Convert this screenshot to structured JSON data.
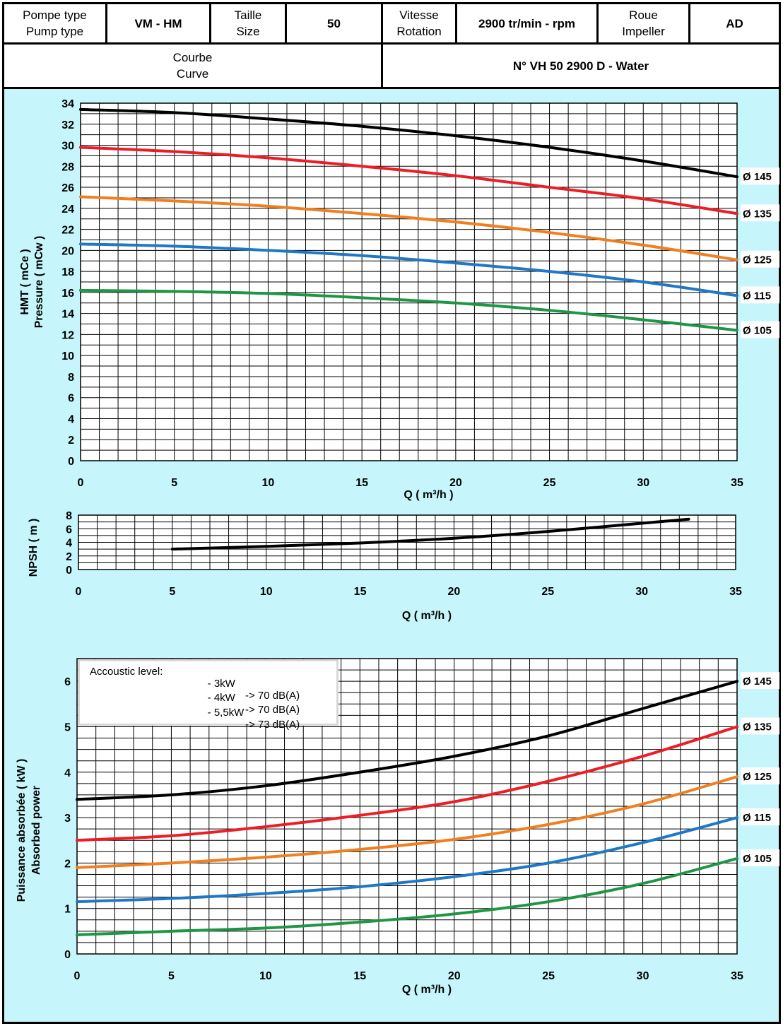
{
  "header": {
    "pump_type_label_fr": "Pompe type",
    "pump_type_label_en": "Pump type",
    "pump_type": "VM - HM",
    "size_label_fr": "Taille",
    "size_label_en": "Size",
    "size": "50",
    "speed_label_fr": "Vitesse",
    "speed_label_en": "Rotation",
    "speed": "2900 tr/min - rpm",
    "impeller_label_fr": "Roue",
    "impeller_label_en": "Impeller",
    "impeller": "AD",
    "curve_label_fr": "Courbe",
    "curve_label_en": "Curve",
    "curve_id": "N° VH 50 2900 D - Water"
  },
  "acoustic": {
    "title": "Accoustic level:",
    "rows": [
      {
        "power": "- 3kW",
        "level": "-> 70 dB(A)"
      },
      {
        "power": "- 4kW",
        "level": "-> 70 dB(A)"
      },
      {
        "power": "- 5,5kW",
        "level": "-> 73 dB(A)"
      }
    ]
  },
  "colors": {
    "background": "#c6f6fb",
    "d145": "#000000",
    "d135": "#ee1c24",
    "d125": "#f07f1f",
    "d115": "#1f78c6",
    "d105": "#1e9644"
  },
  "chart_data": [
    {
      "type": "line",
      "id": "hmt",
      "xlabel": "Q ( m³/h )",
      "ylabel_fr": "HMT ( mCe )",
      "ylabel_en": "Pressure ( mCw )",
      "xlim": [
        0,
        35
      ],
      "ylim": [
        0,
        34
      ],
      "xticks": [
        0,
        5,
        10,
        15,
        20,
        25,
        30,
        35
      ],
      "yticks": [
        0,
        2,
        4,
        6,
        8,
        10,
        12,
        14,
        16,
        18,
        20,
        22,
        24,
        26,
        28,
        30,
        32,
        34
      ],
      "grid": true,
      "x": [
        0,
        5,
        10,
        15,
        20,
        25,
        30,
        35
      ],
      "series": [
        {
          "name": "Ø 145",
          "color_key": "d145",
          "values": [
            33.4,
            33.1,
            32.5,
            31.8,
            30.9,
            29.8,
            28.5,
            27.0
          ]
        },
        {
          "name": "Ø 135",
          "color_key": "d135",
          "values": [
            29.8,
            29.4,
            28.8,
            28.0,
            27.1,
            26.0,
            24.9,
            23.5
          ]
        },
        {
          "name": "Ø 125",
          "color_key": "d125",
          "values": [
            25.1,
            24.7,
            24.2,
            23.5,
            22.7,
            21.7,
            20.5,
            19.1
          ]
        },
        {
          "name": "Ø 115",
          "color_key": "d115",
          "values": [
            20.6,
            20.4,
            20.0,
            19.5,
            18.8,
            18.0,
            17.0,
            15.7
          ]
        },
        {
          "name": "Ø 105",
          "color_key": "d105",
          "values": [
            16.2,
            16.1,
            15.9,
            15.5,
            15.0,
            14.3,
            13.4,
            12.4
          ]
        }
      ]
    },
    {
      "type": "line",
      "id": "npsh",
      "xlabel": "Q ( m³/h )",
      "ylabel": "NPSH ( m )",
      "xlim": [
        0,
        35
      ],
      "ylim": [
        0,
        8
      ],
      "xticks": [
        0,
        5,
        10,
        15,
        20,
        25,
        30,
        35
      ],
      "yticks": [
        0,
        2,
        4,
        6,
        8
      ],
      "grid": true,
      "series": [
        {
          "color_key": "d145",
          "x": [
            5,
            10,
            15,
            20,
            25,
            30,
            32.5
          ],
          "values": [
            3.0,
            3.4,
            3.9,
            4.6,
            5.6,
            6.8,
            7.4
          ]
        }
      ]
    },
    {
      "type": "line",
      "id": "power",
      "xlabel": "Q ( m³/h )",
      "ylabel_fr": "Puissance absorbée ( kW )",
      "ylabel_en": "Absorbed power",
      "xlim": [
        0,
        35
      ],
      "ylim": [
        0,
        6.5
      ],
      "xticks": [
        0,
        5,
        10,
        15,
        20,
        25,
        30,
        35
      ],
      "yticks": [
        0,
        1,
        2,
        3,
        4,
        5,
        6
      ],
      "grid": true,
      "x": [
        0,
        5,
        10,
        15,
        20,
        25,
        30,
        35
      ],
      "series": [
        {
          "name": "Ø 145",
          "color_key": "d145",
          "values": [
            3.4,
            3.5,
            3.7,
            4.0,
            4.35,
            4.8,
            5.4,
            6.0
          ]
        },
        {
          "name": "Ø 135",
          "color_key": "d135",
          "values": [
            2.5,
            2.6,
            2.8,
            3.05,
            3.35,
            3.8,
            4.35,
            5.0
          ]
        },
        {
          "name": "Ø 125",
          "color_key": "d125",
          "values": [
            1.9,
            2.0,
            2.13,
            2.3,
            2.52,
            2.85,
            3.3,
            3.9
          ]
        },
        {
          "name": "Ø 115",
          "color_key": "d115",
          "values": [
            1.15,
            1.22,
            1.33,
            1.48,
            1.7,
            2.0,
            2.45,
            3.0
          ]
        },
        {
          "name": "Ø 105",
          "color_key": "d105",
          "values": [
            0.42,
            0.5,
            0.57,
            0.7,
            0.88,
            1.15,
            1.55,
            2.1
          ]
        }
      ]
    }
  ]
}
